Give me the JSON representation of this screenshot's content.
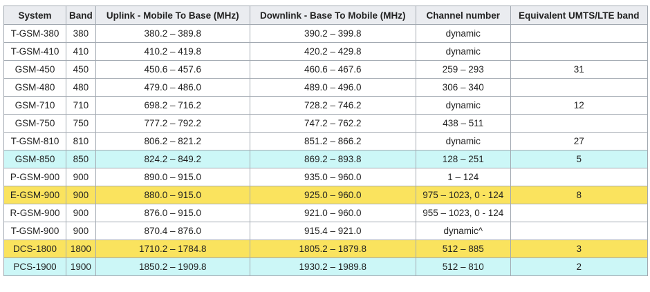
{
  "table": {
    "headers": [
      "System",
      "Band",
      "Uplink - Mobile To Base (MHz)",
      "Downlink - Base To Mobile (MHz)",
      "Channel number",
      "Equivalent UMTS/LTE band"
    ],
    "rows": [
      {
        "color": "#ffffff",
        "cells": [
          "T-GSM-380",
          "380",
          "380.2 – 389.8",
          "390.2 – 399.8",
          "dynamic",
          ""
        ]
      },
      {
        "color": "#ffffff",
        "cells": [
          "T-GSM-410",
          "410",
          "410.2 – 419.8",
          "420.2 – 429.8",
          "dynamic",
          ""
        ]
      },
      {
        "color": "#ffffff",
        "cells": [
          "GSM-450",
          "450",
          "450.6 – 457.6",
          "460.6 – 467.6",
          "259 – 293",
          "31"
        ]
      },
      {
        "color": "#ffffff",
        "cells": [
          "GSM-480",
          "480",
          "479.0 – 486.0",
          "489.0 – 496.0",
          "306 – 340",
          ""
        ]
      },
      {
        "color": "#ffffff",
        "cells": [
          "GSM-710",
          "710",
          "698.2 – 716.2",
          "728.2 – 746.2",
          "dynamic",
          "12"
        ]
      },
      {
        "color": "#ffffff",
        "cells": [
          "GSM-750",
          "750",
          "777.2 – 792.2",
          "747.2 – 762.2",
          "438 – 511",
          ""
        ]
      },
      {
        "color": "#ffffff",
        "cells": [
          "T-GSM-810",
          "810",
          "806.2 – 821.2",
          "851.2 – 866.2",
          "dynamic",
          "27"
        ]
      },
      {
        "color": "#ccf7f7",
        "cells": [
          "GSM-850",
          "850",
          "824.2 – 849.2",
          "869.2 – 893.8",
          "128 – 251",
          "5"
        ]
      },
      {
        "color": "#ffffff",
        "cells": [
          "P-GSM-900",
          "900",
          "890.0 – 915.0",
          "935.0 – 960.0",
          "1 – 124",
          ""
        ]
      },
      {
        "color": "#fae35e",
        "cells": [
          "E-GSM-900",
          "900",
          "880.0 – 915.0",
          "925.0 – 960.0",
          "975 – 1023, 0 - 124",
          "8"
        ]
      },
      {
        "color": "#ffffff",
        "cells": [
          "R-GSM-900",
          "900",
          "876.0 – 915.0",
          "921.0 – 960.0",
          "955 – 1023, 0 - 124",
          ""
        ]
      },
      {
        "color": "#ffffff",
        "cells": [
          "T-GSM-900",
          "900",
          "870.4 – 876.0",
          "915.4 – 921.0",
          "dynamic^",
          ""
        ]
      },
      {
        "color": "#fae35e",
        "cells": [
          "DCS-1800",
          "1800",
          "1710.2 – 1784.8",
          "1805.2 – 1879.8",
          "512 – 885",
          "3"
        ]
      },
      {
        "color": "#ccf7f7",
        "cells": [
          "PCS-1900",
          "1900",
          "1850.2 – 1909.8",
          "1930.2 – 1989.8",
          "512 – 810",
          "2"
        ]
      }
    ]
  }
}
